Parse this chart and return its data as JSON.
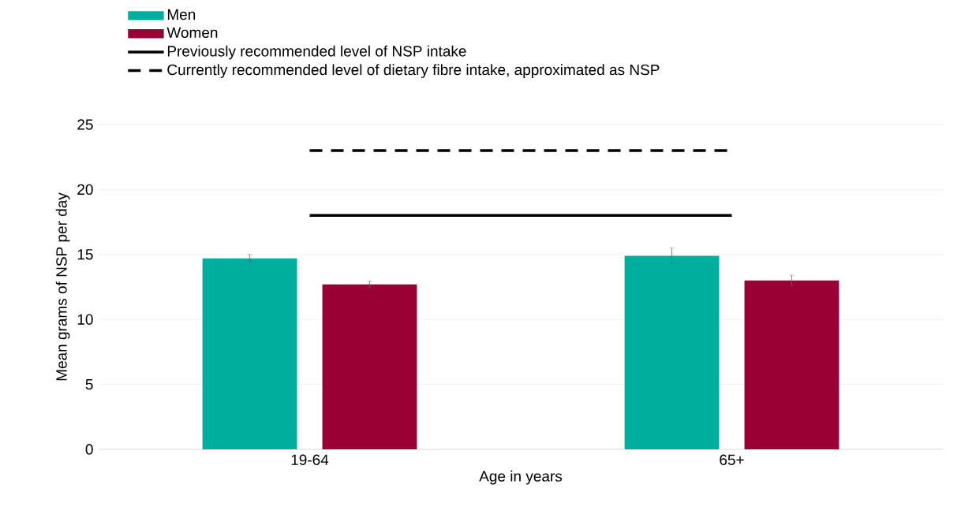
{
  "chart_data": {
    "type": "bar",
    "xlabel": "Age in years",
    "ylabel": "Mean grams of NSP per day",
    "categories": [
      "19-64",
      "65+"
    ],
    "series": [
      {
        "name": "Men",
        "color": "#00ae9e",
        "values": [
          14.7,
          14.9
        ],
        "errors": [
          0.3,
          0.6
        ]
      },
      {
        "name": "Women",
        "color": "#990033",
        "values": [
          12.7,
          13.0
        ],
        "errors": [
          0.25,
          0.4
        ]
      }
    ],
    "ref_lines": [
      {
        "axis": "y",
        "value": 18,
        "label": "Previously recommended level of NSP intake",
        "color": "#000000",
        "line_style": "solid"
      },
      {
        "axis": "y",
        "value": 23,
        "label": "Currently recommended level of dietary fibre intake, approximated as NSP",
        "color": "#000000",
        "line_style": "dashed"
      }
    ],
    "ylim": [
      0,
      25
    ],
    "yticks": [
      0,
      5,
      10,
      15,
      20,
      25
    ],
    "grid": "y",
    "legend": "top left"
  }
}
